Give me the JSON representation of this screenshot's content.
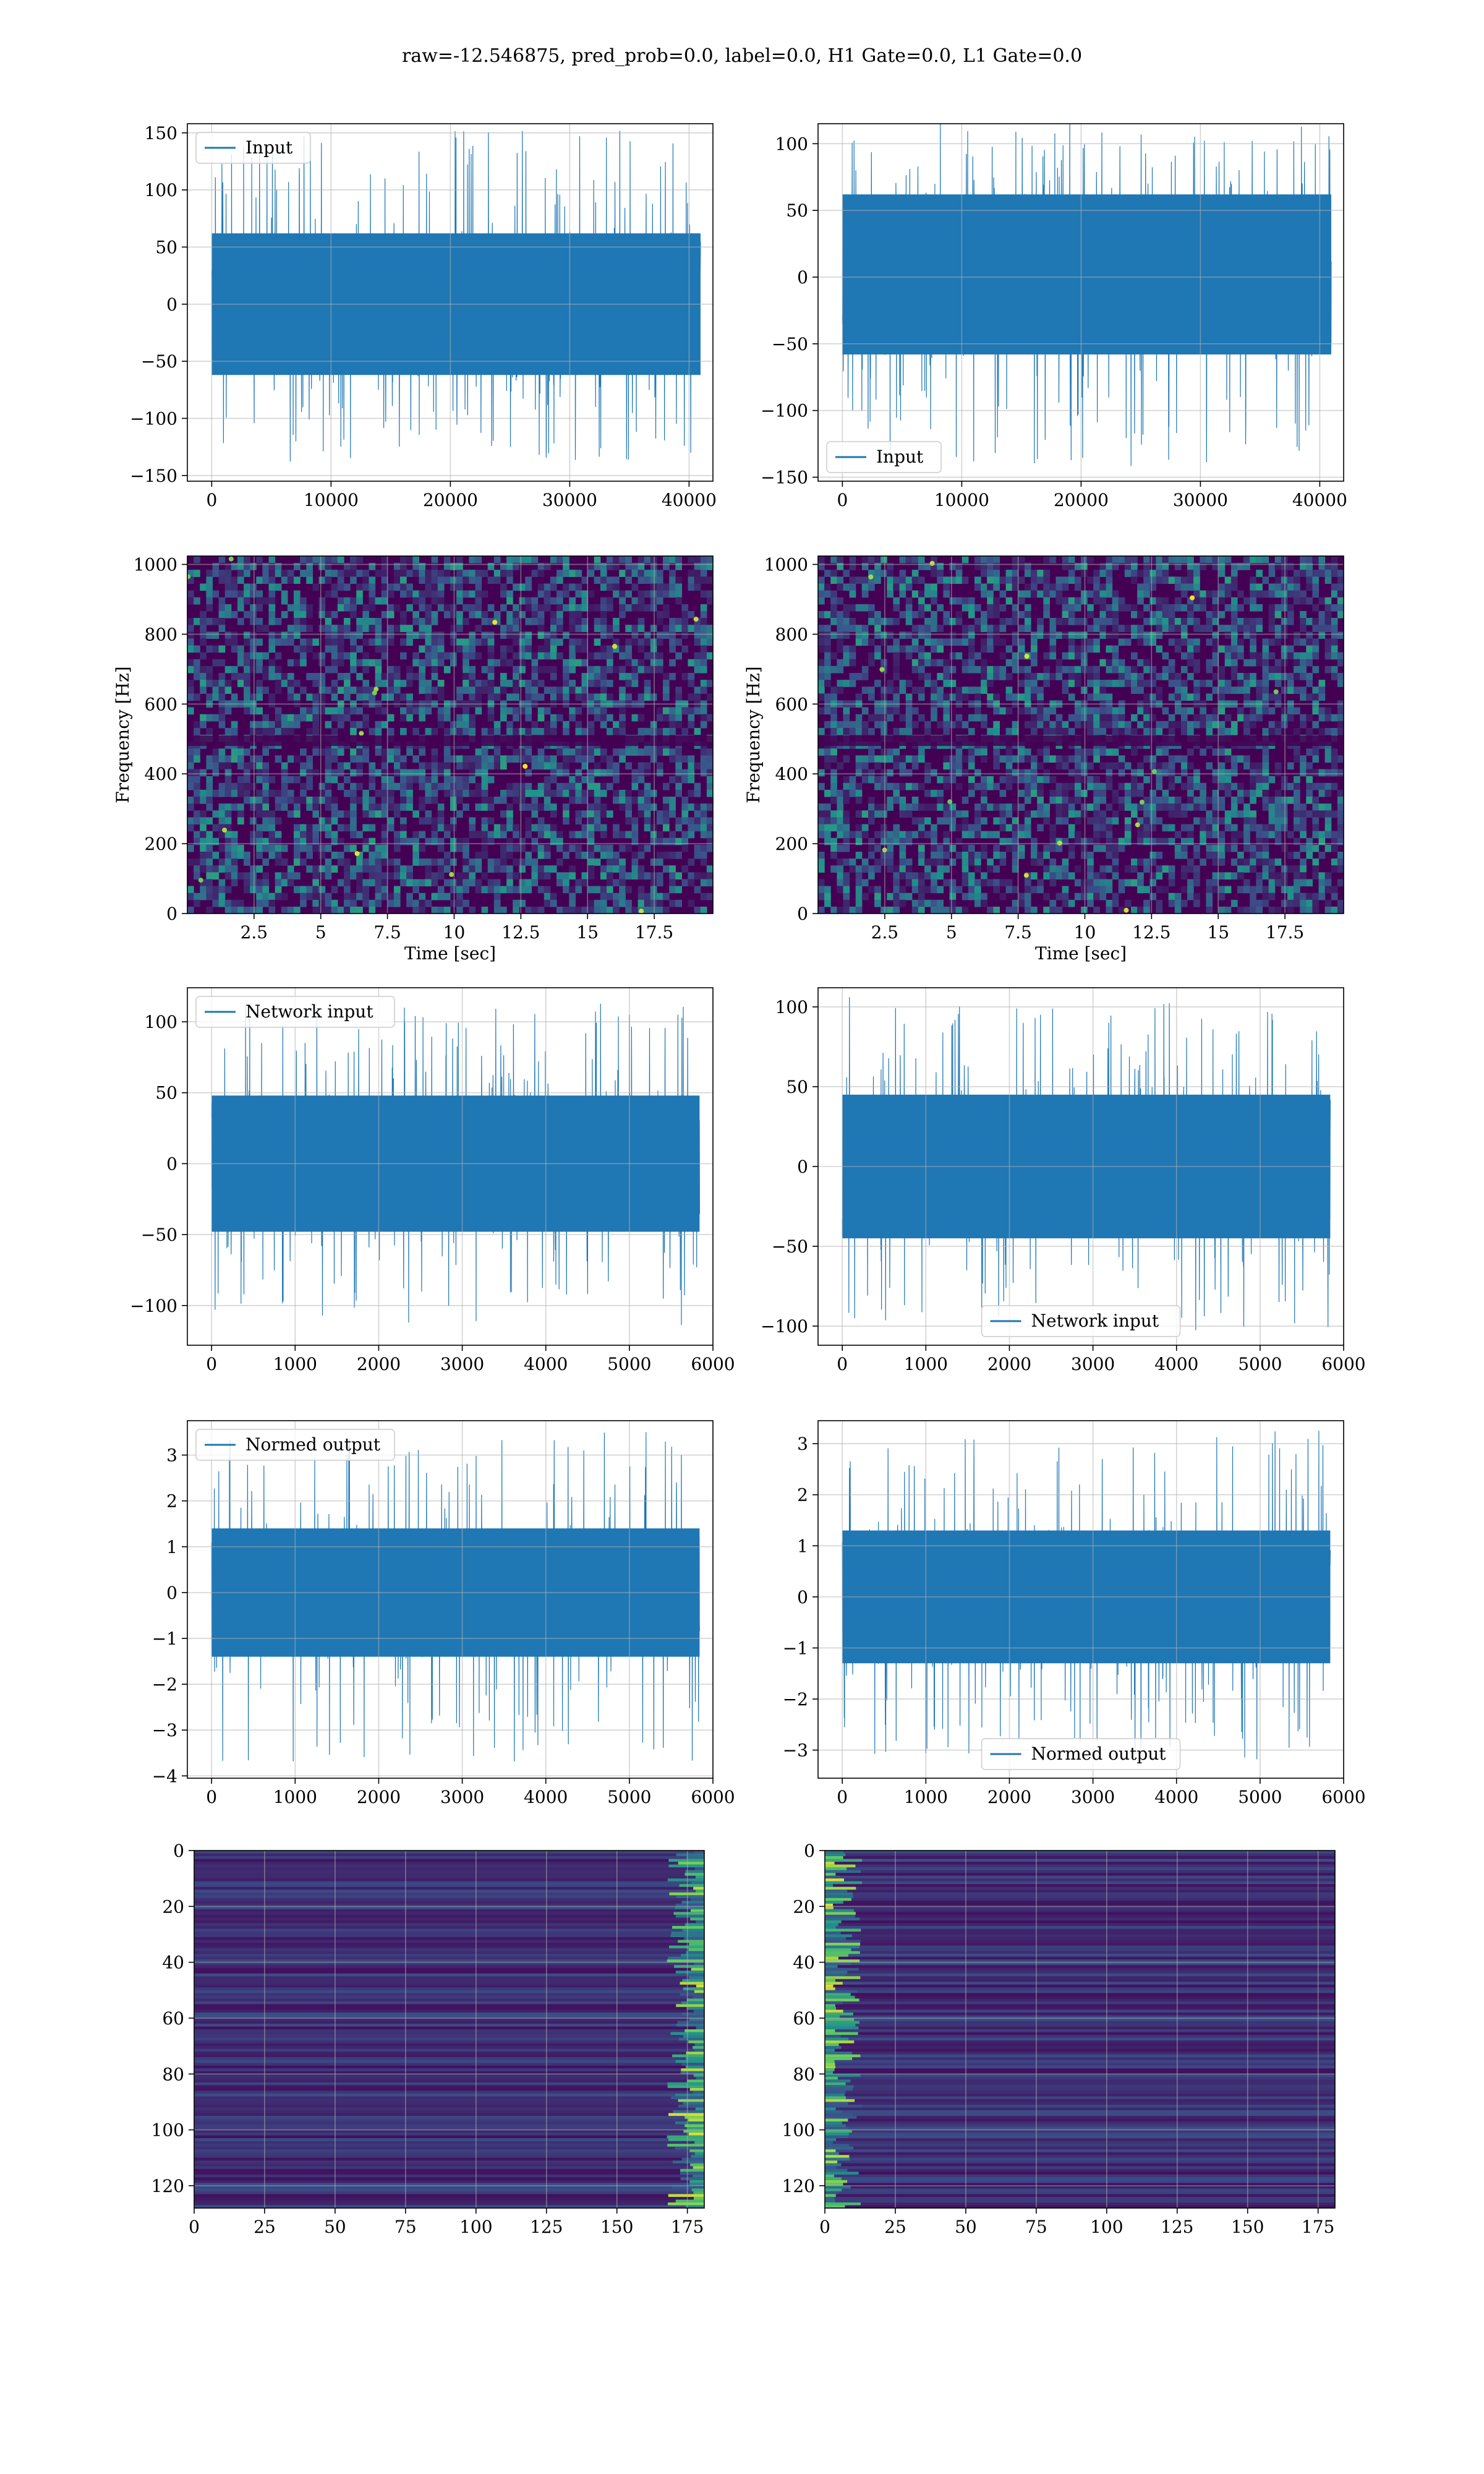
{
  "figure": {
    "suptitle": "raw=-12.546875, pred_prob=0.0, label=0.0, H1 Gate=0.0, L1 Gate=0.0"
  },
  "colors": {
    "line": "#1f77b4",
    "grid": "#b0b0b0",
    "viridis_dark": "#440154",
    "viridis_mid": "#21918c",
    "viridis_bright": "#fde725"
  },
  "chart_data": [
    {
      "id": "raw-h1",
      "type": "line",
      "series": [
        {
          "name": "Input"
        }
      ],
      "legend": "upper-left",
      "xlim": [
        -2040,
        42000
      ],
      "ylim": [
        -155,
        158
      ],
      "xticks": [
        0,
        10000,
        20000,
        30000,
        40000
      ],
      "yticks": [
        -150,
        -100,
        -50,
        0,
        50,
        100,
        150
      ],
      "n_samples": 40960,
      "x_range": [
        0,
        40960
      ],
      "envelope": {
        "p_min": -138,
        "p_max": 152,
        "core_low": -62,
        "core_high": 62
      },
      "grid": true
    },
    {
      "id": "raw-l1",
      "type": "line",
      "series": [
        {
          "name": "Input"
        }
      ],
      "legend": "lower-left",
      "xlim": [
        -2040,
        42000
      ],
      "ylim": [
        -153,
        115
      ],
      "xticks": [
        0,
        10000,
        20000,
        30000,
        40000
      ],
      "yticks": [
        -150,
        -100,
        -50,
        0,
        50,
        100
      ],
      "n_samples": 40960,
      "x_range": [
        0,
        40960
      ],
      "envelope": {
        "p_min": -142,
        "p_max": 117,
        "core_low": -58,
        "core_high": 62
      },
      "grid": true
    },
    {
      "id": "spec-h1",
      "type": "heatmap",
      "xlabel": "Time [sec]",
      "ylabel": "Frequency [Hz]",
      "xlim": [
        0,
        19.7
      ],
      "ylim": [
        0,
        1024
      ],
      "xticks": [
        2.5,
        5.0,
        7.5,
        10.0,
        12.5,
        15.0,
        17.5
      ],
      "yticks": [
        0,
        200,
        400,
        600,
        800,
        1000
      ],
      "dark_band_hz": [
        480,
        510
      ],
      "grid": true
    },
    {
      "id": "spec-l1",
      "type": "heatmap",
      "xlabel": "Time [sec]",
      "ylabel": "Frequency [Hz]",
      "xlim": [
        0,
        19.7
      ],
      "ylim": [
        0,
        1024
      ],
      "xticks": [
        2.5,
        5.0,
        7.5,
        10.0,
        12.5,
        15.0,
        17.5
      ],
      "yticks": [
        0,
        200,
        400,
        600,
        800,
        1000
      ],
      "dark_band_hz": [
        480,
        510
      ],
      "grid": true
    },
    {
      "id": "net-h1",
      "type": "line",
      "series": [
        {
          "name": "Network input"
        }
      ],
      "legend": "upper-left",
      "xlim": [
        -290,
        6000
      ],
      "ylim": [
        -128,
        124
      ],
      "xticks": [
        0,
        1000,
        2000,
        3000,
        4000,
        5000,
        6000
      ],
      "yticks": [
        -100,
        -50,
        0,
        50,
        100
      ],
      "n_samples": 5840,
      "x_range": [
        0,
        5840
      ],
      "envelope": {
        "p_min": -115,
        "p_max": 113,
        "core_low": -48,
        "core_high": 48
      },
      "grid": true
    },
    {
      "id": "net-l1",
      "type": "line",
      "series": [
        {
          "name": "Network input"
        }
      ],
      "legend": "lower-center",
      "xlim": [
        -290,
        6000
      ],
      "ylim": [
        -112,
        112
      ],
      "xticks": [
        0,
        1000,
        2000,
        3000,
        4000,
        5000,
        6000
      ],
      "yticks": [
        -100,
        -50,
        0,
        50,
        100
      ],
      "n_samples": 5840,
      "x_range": [
        0,
        5840
      ],
      "envelope": {
        "p_min": -103,
        "p_max": 107,
        "core_low": -45,
        "core_high": 45
      },
      "grid": true
    },
    {
      "id": "norm-h1",
      "type": "line",
      "series": [
        {
          "name": "Normed output"
        }
      ],
      "legend": "upper-left",
      "xlim": [
        -290,
        6000
      ],
      "ylim": [
        -4.05,
        3.75
      ],
      "xticks": [
        0,
        1000,
        2000,
        3000,
        4000,
        5000,
        6000
      ],
      "yticks": [
        -4,
        -3,
        -2,
        -1,
        0,
        1,
        2,
        3
      ],
      "n_samples": 5840,
      "x_range": [
        0,
        5840
      ],
      "envelope": {
        "p_min": -3.7,
        "p_max": 3.5,
        "core_low": -1.4,
        "core_high": 1.4
      },
      "grid": true
    },
    {
      "id": "norm-l1",
      "type": "line",
      "series": [
        {
          "name": "Normed output"
        }
      ],
      "legend": "lower-center",
      "xlim": [
        -290,
        6000
      ],
      "ylim": [
        -3.55,
        3.45
      ],
      "xticks": [
        0,
        1000,
        2000,
        3000,
        4000,
        5000,
        6000
      ],
      "yticks": [
        -3,
        -2,
        -1,
        0,
        1,
        2,
        3
      ],
      "n_samples": 5840,
      "x_range": [
        0,
        5840
      ],
      "envelope": {
        "p_min": -3.2,
        "p_max": 3.3,
        "core_low": -1.3,
        "core_high": 1.3
      },
      "grid": true
    },
    {
      "id": "feat-h1",
      "type": "heatmap",
      "xlim": [
        0,
        181
      ],
      "ylim": [
        128,
        0
      ],
      "xticks": [
        0,
        25,
        50,
        75,
        100,
        125,
        150,
        175
      ],
      "yticks": [
        0,
        20,
        40,
        60,
        80,
        100,
        120
      ],
      "rows": 128,
      "cols": 181,
      "bright_edges": "right",
      "grid": true
    },
    {
      "id": "feat-l1",
      "type": "heatmap",
      "xlim": [
        0,
        181
      ],
      "ylim": [
        128,
        0
      ],
      "xticks": [
        0,
        25,
        50,
        75,
        100,
        125,
        150,
        175
      ],
      "yticks": [
        0,
        20,
        40,
        60,
        80,
        100,
        120
      ],
      "rows": 128,
      "cols": 181,
      "bright_edges": "left",
      "grid": true
    }
  ]
}
